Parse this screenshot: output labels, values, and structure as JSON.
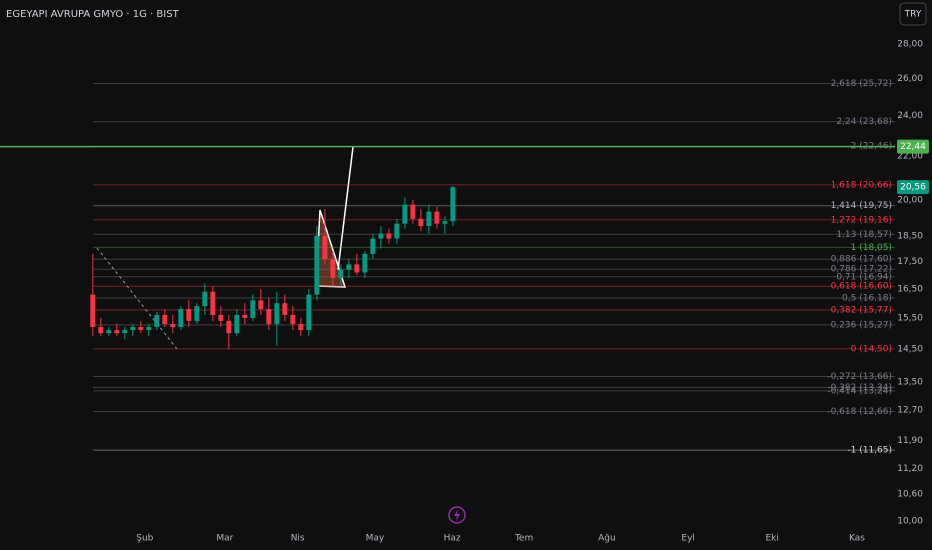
{
  "chart_data": {
    "type": "candlestick",
    "title": "EGEYAPI AVRUPA GMYO · 1G · BIST",
    "currency_button": "TRY",
    "log_scale": true,
    "grid": false,
    "up_color": "#089981",
    "down_color": "#f23645",
    "x": [
      0,
      1,
      2,
      3,
      4,
      5,
      6,
      7,
      8,
      9,
      10,
      11,
      12,
      13,
      14,
      15,
      16,
      17,
      18,
      19,
      20,
      21,
      22,
      23,
      24,
      25,
      26,
      27,
      28,
      29,
      30,
      31,
      32,
      33,
      34,
      35,
      36,
      37,
      38,
      39,
      40,
      41,
      42,
      43,
      44,
      45
    ],
    "ohlc": [
      [
        16.3,
        17.8,
        14.9,
        15.2
      ],
      [
        15.2,
        15.5,
        14.9,
        15.0
      ],
      [
        15.0,
        15.2,
        14.9,
        15.1
      ],
      [
        15.1,
        15.3,
        14.9,
        15.0
      ],
      [
        15.0,
        15.2,
        14.8,
        15.1
      ],
      [
        15.1,
        15.3,
        14.9,
        15.2
      ],
      [
        15.2,
        15.4,
        15.0,
        15.1
      ],
      [
        15.1,
        15.3,
        14.9,
        15.2
      ],
      [
        15.2,
        15.7,
        15.1,
        15.6
      ],
      [
        15.6,
        15.8,
        15.2,
        15.3
      ],
      [
        15.3,
        15.6,
        15.0,
        15.2
      ],
      [
        15.2,
        15.9,
        15.1,
        15.8
      ],
      [
        15.8,
        16.1,
        15.2,
        15.4
      ],
      [
        15.4,
        16.0,
        15.3,
        15.9
      ],
      [
        15.9,
        16.7,
        15.6,
        16.4
      ],
      [
        16.4,
        16.6,
        15.4,
        15.6
      ],
      [
        15.6,
        15.9,
        15.2,
        15.4
      ],
      [
        15.4,
        15.6,
        14.5,
        15.0
      ],
      [
        15.0,
        15.8,
        14.9,
        15.6
      ],
      [
        15.6,
        16.0,
        15.3,
        15.5
      ],
      [
        15.5,
        16.3,
        15.4,
        16.1
      ],
      [
        16.1,
        16.5,
        15.6,
        15.8
      ],
      [
        15.8,
        16.2,
        15.1,
        15.3
      ],
      [
        15.3,
        16.4,
        14.6,
        16.0
      ],
      [
        16.0,
        16.3,
        15.4,
        15.6
      ],
      [
        15.6,
        15.9,
        15.1,
        15.3
      ],
      [
        15.3,
        15.5,
        14.9,
        15.1
      ],
      [
        15.1,
        16.5,
        14.9,
        16.3
      ],
      [
        16.3,
        18.9,
        16.1,
        18.5
      ],
      [
        18.5,
        19.6,
        17.4,
        17.6
      ],
      [
        17.6,
        17.9,
        16.6,
        16.9
      ],
      [
        16.9,
        17.4,
        16.6,
        17.2
      ],
      [
        17.2,
        17.6,
        16.9,
        17.4
      ],
      [
        17.4,
        17.8,
        17.0,
        17.1
      ],
      [
        17.1,
        17.9,
        16.9,
        17.8
      ],
      [
        17.8,
        18.6,
        17.6,
        18.4
      ],
      [
        18.4,
        18.9,
        18.0,
        18.6
      ],
      [
        18.6,
        18.8,
        18.2,
        18.4
      ],
      [
        18.4,
        19.2,
        18.2,
        19.0
      ],
      [
        19.0,
        20.1,
        18.8,
        19.8
      ],
      [
        19.8,
        20.0,
        19.0,
        19.2
      ],
      [
        19.2,
        19.6,
        18.7,
        18.9
      ],
      [
        18.9,
        19.8,
        18.6,
        19.5
      ],
      [
        19.5,
        19.7,
        18.8,
        19.0
      ],
      [
        19.0,
        19.3,
        18.6,
        19.1
      ],
      [
        19.1,
        20.6,
        18.9,
        20.56
      ]
    ],
    "xlim": [
      -11.6,
      100.25
    ],
    "xticks": [
      {
        "value": 6.5,
        "label": "Şub"
      },
      {
        "value": 16.5,
        "label": "Mar"
      },
      {
        "value": 25.6,
        "label": "Nis"
      },
      {
        "value": 35.25,
        "label": "May"
      },
      {
        "value": 44.9,
        "label": "Haz"
      },
      {
        "value": 53.9,
        "label": "Tem"
      },
      {
        "value": 64.25,
        "label": "Ağu"
      },
      {
        "value": 74.4,
        "label": "Eyl"
      },
      {
        "value": 84.9,
        "label": "Eki"
      },
      {
        "value": 95.5,
        "label": "Kas"
      }
    ],
    "ylim": [
      9.39,
      30.8
    ],
    "yticks": [
      {
        "value": 28,
        "label": "28,00"
      },
      {
        "value": 26,
        "label": "26,00"
      },
      {
        "value": 24,
        "label": "24,00"
      },
      {
        "value": 22,
        "label": "22,00"
      },
      {
        "value": 20,
        "label": "20,00"
      },
      {
        "value": 18.5,
        "label": "18,50"
      },
      {
        "value": 17.5,
        "label": "17,50"
      },
      {
        "value": 16.5,
        "label": "16,50"
      },
      {
        "value": 15.5,
        "label": "15,50"
      },
      {
        "value": 14.5,
        "label": "14,50"
      },
      {
        "value": 13.5,
        "label": "13,50"
      },
      {
        "value": 12.7,
        "label": "12,70"
      },
      {
        "value": 11.9,
        "label": "11,90"
      },
      {
        "value": 11.2,
        "label": "11,20"
      },
      {
        "value": 10.6,
        "label": "10,60"
      },
      {
        "value": 10,
        "label": "10,00"
      }
    ],
    "fib_levels": [
      {
        "value": 25.72,
        "label": "2,618 (25,72)",
        "color": "#787b86"
      },
      {
        "value": 23.68,
        "label": "2,24 (23,68)",
        "color": "#787b86"
      },
      {
        "value": 22.46,
        "label": "2 (22,46)",
        "color": "#787b86"
      },
      {
        "value": 20.66,
        "label": "1,618 (20,66)",
        "color": "#f23645"
      },
      {
        "value": 19.75,
        "label": "1,414 (19,75)",
        "color": "#b2b5be"
      },
      {
        "value": 19.16,
        "label": "1,272 (19,16)",
        "color": "#f23645"
      },
      {
        "value": 18.57,
        "label": "1,13 (18,57)",
        "color": "#787b86"
      },
      {
        "value": 18.05,
        "label": "1 (18,05)",
        "color": "#4caf50"
      },
      {
        "value": 17.6,
        "label": "0,886 (17,60)",
        "color": "#787b86"
      },
      {
        "value": 17.22,
        "label": "0,786 (17,22)",
        "color": "#787b86"
      },
      {
        "value": 16.94,
        "label": "0,71 (16,94)",
        "color": "#787b86"
      },
      {
        "value": 16.6,
        "label": "0,618 (16,60)",
        "color": "#f23645"
      },
      {
        "value": 16.18,
        "label": "0,5 (16,18)",
        "color": "#787b86"
      },
      {
        "value": 15.77,
        "label": "0,382 (15,77)",
        "color": "#f23645"
      },
      {
        "value": 15.27,
        "label": "0,236 (15,27)",
        "color": "#787b86"
      },
      {
        "value": 14.5,
        "label": "0 (14,50)",
        "color": "#f23645"
      },
      {
        "value": 13.66,
        "label": "-0,272 (13,66)",
        "color": "#787b86"
      },
      {
        "value": 13.34,
        "label": "-0,382 (13,34)",
        "color": "#787b86"
      },
      {
        "value": 13.24,
        "label": "-0,414 (13,24)",
        "color": "#787b86"
      },
      {
        "value": 12.66,
        "label": "-0,618 (12,66)",
        "color": "#787b86"
      },
      {
        "value": 11.65,
        "label": "-1 (11,65)",
        "color": "#d1d4dc"
      }
    ],
    "price_tags": [
      {
        "value": 22.44,
        "label": "22,44",
        "color": "#4caf50"
      },
      {
        "value": 20.56,
        "label": "20,56",
        "color": "#089981"
      }
    ]
  }
}
